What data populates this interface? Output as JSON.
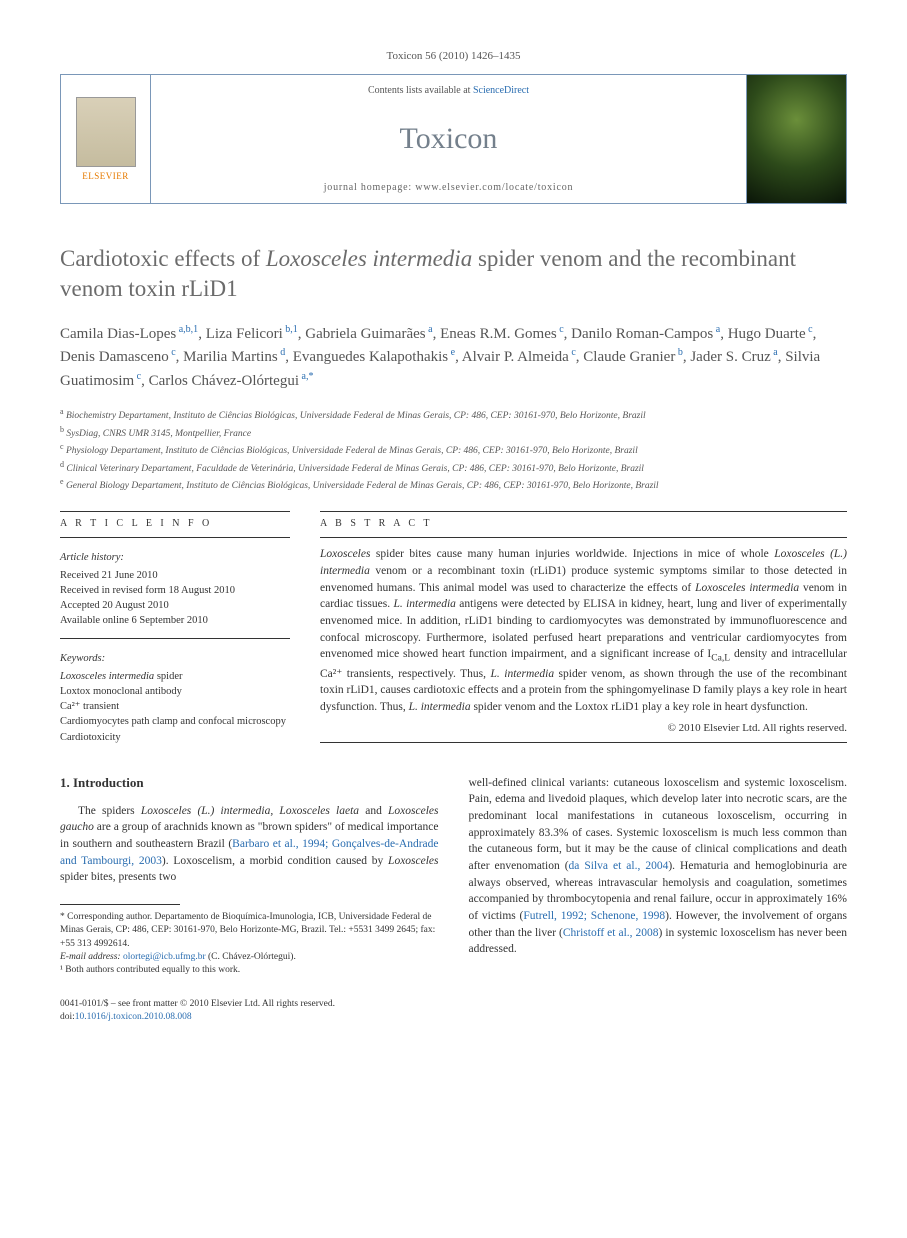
{
  "journal_ref": "Toxicon 56 (2010) 1426–1435",
  "header": {
    "publisher_label": "ELSEVIER",
    "contents_prefix": "Contents lists available at ",
    "contents_link": "ScienceDirect",
    "journal_name": "Toxicon",
    "homepage_prefix": "journal homepage: ",
    "homepage_url": "www.elsevier.com/locate/toxicon"
  },
  "title": {
    "pre": "Cardiotoxic effects of ",
    "italic": "Loxosceles intermedia",
    "post": " spider venom and the recombinant venom toxin rLiD1"
  },
  "authors_html": "Camila Dias-Lopes<sup> a,b,1</sup>, Liza Felicori<sup> b,1</sup>, Gabriela Guimarães<sup> a</sup>, Eneas R.M. Gomes<sup> c</sup>, Danilo Roman-Campos<sup> a</sup>, Hugo Duarte<sup> c</sup>, Denis Damasceno<sup> c</sup>, Marilia Martins<sup> d</sup>, Evanguedes Kalapothakis<sup> e</sup>, Alvair P. Almeida<sup> c</sup>, Claude Granier<sup> b</sup>, Jader S. Cruz<sup> a</sup>, Silvia Guatimosim<sup> c</sup>, Carlos Chávez-Olórtegui<sup> a,*</sup>",
  "affiliations": [
    {
      "sup": "a",
      "text": "Biochemistry Departament, Instituto de Ciências Biológicas, Universidade Federal de Minas Gerais, CP: 486, CEP: 30161-970, Belo Horizonte, Brazil"
    },
    {
      "sup": "b",
      "text": "SysDiag, CNRS UMR 3145, Montpellier, France"
    },
    {
      "sup": "c",
      "text": "Physiology Departament, Instituto de Ciências Biológicas, Universidade Federal de Minas Gerais, CP: 486, CEP: 30161-970, Belo Horizonte, Brazil"
    },
    {
      "sup": "d",
      "text": "Clinical Veterinary Departament, Faculdade de Veterinária, Universidade Federal de Minas Gerais, CP: 486, CEP: 30161-970, Belo Horizonte, Brazil"
    },
    {
      "sup": "e",
      "text": "General Biology Departament, Instituto de Ciências Biológicas, Universidade Federal de Minas Gerais, CP: 486, CEP: 30161-970, Belo Horizonte, Brazil"
    }
  ],
  "article_info": {
    "label": "A R T I C L E   I N F O",
    "history_heading": "Article history:",
    "history": [
      "Received 21 June 2010",
      "Received in revised form 18 August 2010",
      "Accepted 20 August 2010",
      "Available online 6 September 2010"
    ],
    "keywords_heading": "Keywords:",
    "keywords": [
      "Loxosceles intermedia spider",
      "Loxtox monoclonal antibody",
      "Ca²⁺ transient",
      "Cardiomyocytes path clamp and confocal microscopy",
      "Cardiotoxicity"
    ]
  },
  "abstract": {
    "label": "A B S T R A C T",
    "text_html": "<span class=\"italic\">Loxosceles</span> spider bites cause many human injuries worldwide. Injections in mice of whole <span class=\"italic\">Loxosceles (L.) intermedia</span> venom or a recombinant toxin (rLiD1) produce systemic symptoms similar to those detected in envenomed humans. This animal model was used to characterize the effects of <span class=\"italic\">Loxosceles intermedia</span> venom in cardiac tissues. <span class=\"italic\">L. intermedia</span> antigens were detected by ELISA in kidney, heart, lung and liver of experimentally envenomed mice. In addition, rLiD1 binding to cardiomyocytes was demonstrated by immunofluorescence and confocal microscopy. Furthermore, isolated perfused heart preparations and ventricular cardiomyocytes from envenomed mice showed heart function impairment, and a significant increase of I<sub>Ca,L</sub> density and intracellular Ca²⁺ transients, respectively. Thus, <span class=\"italic\">L. intermedia</span> spider venom, as shown through the use of the recombinant toxin rLiD1, causes cardiotoxic effects and a protein from the sphingomyelinase D family plays a key role in heart dysfunction. Thus, <span class=\"italic\">L. intermedia</span> spider venom and the Loxtox rLiD1 play a key role in heart dysfunction.",
    "copyright": "© 2010 Elsevier Ltd. All rights reserved."
  },
  "body": {
    "intro_heading": "1. Introduction",
    "col1_html": "The spiders <span class=\"italic\">Loxosceles (L.) intermedia, Loxosceles laeta</span> and <span class=\"italic\">Loxosceles gaucho</span> are a group of arachnids known as \"brown spiders\" of medical importance in southern and southeastern Brazil (<span class=\"cite\">Barbaro et al., 1994; Gonçalves-de-Andrade and Tambourgi, 2003</span>). Loxoscelism, a morbid condition caused by <span class=\"italic\">Loxosceles</span> spider bites, presents two",
    "col2_html": "well-defined clinical variants: cutaneous loxoscelism and systemic loxoscelism. Pain, edema and livedoid plaques, which develop later into necrotic scars, are the predominant local manifestations in cutaneous loxoscelism, occurring in approximately 83.3% of cases. Systemic loxoscelism is much less common than the cutaneous form, but it may be the cause of clinical complications and death after envenomation (<span class=\"cite\">da Silva et al., 2004</span>). Hematuria and hemoglobinuria are always observed, whereas intravascular hemolysis and coagulation, sometimes accompanied by thrombocytopenia and renal failure, occur in approximately 16% of victims (<span class=\"cite\">Futrell, 1992; Schenone, 1998</span>). However, the involvement of organs other than the liver (<span class=\"cite\">Christoff et al., 2008</span>) in systemic loxoscelism has never been addressed."
  },
  "footnotes": {
    "corresponding": "* Corresponding author. Departamento de Bioquímica-Imunologia, ICB, Universidade Federal de Minas Gerais, CP: 486, CEP: 30161-970, Belo Horizonte-MG, Brazil. Tel.: +5531 3499 2645; fax: +55 313 4992614.",
    "email_label": "E-mail address: ",
    "email": "olortegi@icb.ufmg.br",
    "email_suffix": " (C. Chávez-Olórtegui).",
    "note1": "¹ Both authors contributed equally to this work."
  },
  "footer": {
    "issn_line": "0041-0101/$ – see front matter © 2010 Elsevier Ltd. All rights reserved.",
    "doi_label": "doi:",
    "doi": "10.1016/j.toxicon.2010.08.008"
  },
  "colors": {
    "link": "#2a6db0",
    "title_gray": "#6b6b6b",
    "journal_gray": "#74808c",
    "border": "#7a97b8",
    "orange": "#e67a00"
  }
}
